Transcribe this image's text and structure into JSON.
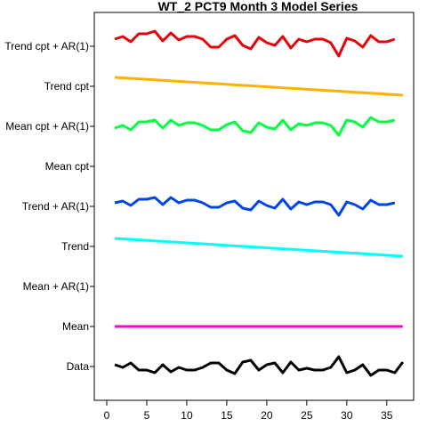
{
  "chart_data": {
    "type": "line",
    "title": "WT_2 PCT9 Month 3 Model Series",
    "xlabel": "",
    "ylabel": "",
    "xlim": [
      0,
      38
    ],
    "x_ticks": [
      0,
      5,
      10,
      15,
      20,
      25,
      30,
      35
    ],
    "rows": [
      "Trend cpt + AR(1)",
      "Trend cpt",
      "Mean cpt + AR(1)",
      "Mean cpt",
      "Trend + AR(1)",
      "Trend",
      "Mean + AR(1)",
      "Mean",
      "Data"
    ],
    "series": [
      {
        "name": "Trend cpt + AR(1)",
        "color": "#e8000b",
        "row": 0,
        "x": [
          1,
          2,
          3,
          4,
          5,
          6,
          7,
          8,
          9,
          10,
          11,
          12,
          13,
          14,
          15,
          16,
          17,
          18,
          19,
          20,
          21,
          22,
          23,
          24,
          25,
          26,
          27,
          28,
          29,
          30,
          31,
          32,
          33,
          34,
          35,
          36
        ],
        "y": [
          0.4,
          0.55,
          0.25,
          0.7,
          0.7,
          0.85,
          0.3,
          0.75,
          0.35,
          0.55,
          0.55,
          0.4,
          -0.05,
          -0.05,
          0.4,
          0.6,
          0.05,
          -0.15,
          0.5,
          0.2,
          0.05,
          0.55,
          -0.1,
          0.4,
          0.25,
          0.4,
          0.4,
          0.2,
          -0.55,
          0.45,
          0.3,
          -0.05,
          0.6,
          0.25,
          0.25,
          0.4
        ]
      },
      {
        "name": "Trend cpt",
        "color": "#ffb000",
        "row": 1,
        "x": [
          1,
          37
        ],
        "y": [
          0.5,
          -0.5
        ]
      },
      {
        "name": "Mean cpt + AR(1)",
        "color": "#00ff40",
        "row": 2,
        "x": [
          1,
          2,
          3,
          4,
          5,
          6,
          7,
          8,
          9,
          10,
          11,
          12,
          13,
          14,
          15,
          16,
          17,
          18,
          19,
          20,
          21,
          22,
          23,
          24,
          25,
          26,
          27,
          28,
          29,
          30,
          31,
          32,
          33,
          34,
          35,
          36
        ],
        "y": [
          -0.1,
          0.05,
          -0.2,
          0.25,
          0.25,
          0.35,
          -0.1,
          0.35,
          0.05,
          0.2,
          0.2,
          0.05,
          -0.2,
          -0.2,
          0.1,
          0.25,
          -0.25,
          -0.35,
          0.2,
          -0.05,
          -0.15,
          0.35,
          -0.2,
          0.15,
          0.05,
          0.2,
          0.2,
          0.05,
          -0.5,
          0.35,
          0.25,
          -0.05,
          0.5,
          0.25,
          0.25,
          0.35
        ]
      },
      {
        "name": "Trend + AR(1)",
        "color": "#0044ee",
        "row": 4,
        "x": [
          1,
          2,
          3,
          4,
          5,
          6,
          7,
          8,
          9,
          10,
          11,
          12,
          13,
          14,
          15,
          16,
          17,
          18,
          19,
          20,
          21,
          22,
          23,
          24,
          25,
          26,
          27,
          28,
          29,
          30,
          31,
          32,
          33,
          34,
          35,
          36
        ],
        "y": [
          0.2,
          0.3,
          0.05,
          0.4,
          0.4,
          0.5,
          0.1,
          0.5,
          0.2,
          0.35,
          0.35,
          0.2,
          -0.05,
          -0.05,
          0.2,
          0.3,
          -0.1,
          -0.2,
          0.3,
          0.05,
          -0.1,
          0.4,
          -0.15,
          0.25,
          0.1,
          0.25,
          0.25,
          0.1,
          -0.5,
          0.25,
          0.1,
          -0.15,
          0.35,
          0.1,
          0.1,
          0.2
        ]
      },
      {
        "name": "Trend",
        "color": "#00ffff",
        "row": 5,
        "x": [
          1,
          37
        ],
        "y": [
          0.45,
          -0.55
        ]
      },
      {
        "name": "Mean",
        "color": "#ff00cc",
        "row": 7,
        "x": [
          1,
          37
        ],
        "y": [
          0,
          0
        ]
      },
      {
        "name": "Data",
        "color": "#000000",
        "row": 8,
        "x": [
          1,
          2,
          3,
          4,
          5,
          6,
          7,
          8,
          9,
          10,
          11,
          12,
          13,
          14,
          15,
          16,
          17,
          18,
          19,
          20,
          21,
          22,
          23,
          24,
          25,
          26,
          27,
          28,
          29,
          30,
          31,
          32,
          33,
          34,
          35,
          36,
          37
        ],
        "y": [
          0.1,
          -0.05,
          0.2,
          -0.2,
          -0.2,
          -0.35,
          0.1,
          -0.3,
          -0.05,
          -0.2,
          -0.2,
          -0.05,
          0.2,
          0.2,
          -0.2,
          -0.4,
          0.25,
          0.35,
          -0.2,
          0.1,
          0.2,
          -0.35,
          0.25,
          -0.2,
          -0.1,
          -0.2,
          -0.2,
          -0.05,
          0.55,
          -0.35,
          -0.2,
          0.1,
          -0.5,
          -0.2,
          -0.2,
          -0.35,
          0.25
        ]
      }
    ]
  }
}
